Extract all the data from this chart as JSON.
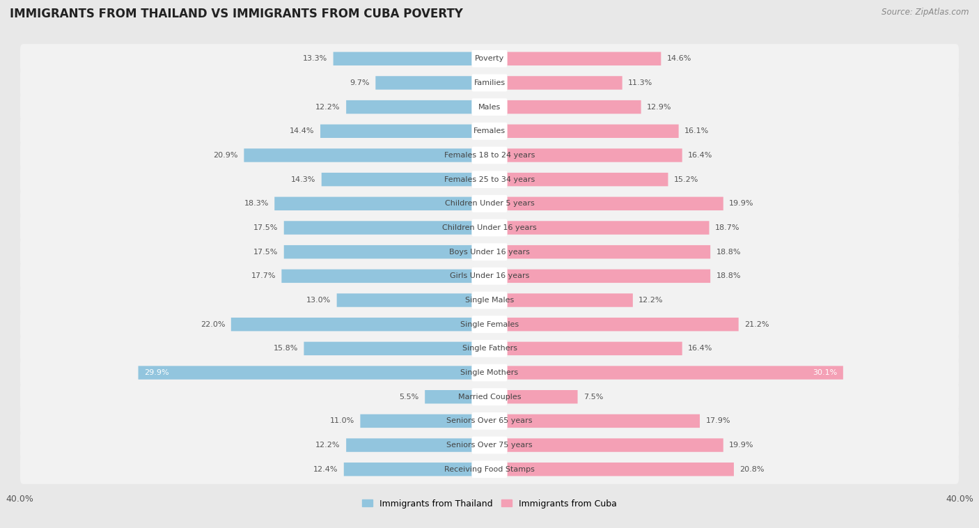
{
  "title": "IMMIGRANTS FROM THAILAND VS IMMIGRANTS FROM CUBA POVERTY",
  "source": "Source: ZipAtlas.com",
  "categories": [
    "Poverty",
    "Families",
    "Males",
    "Females",
    "Females 18 to 24 years",
    "Females 25 to 34 years",
    "Children Under 5 years",
    "Children Under 16 years",
    "Boys Under 16 years",
    "Girls Under 16 years",
    "Single Males",
    "Single Females",
    "Single Fathers",
    "Single Mothers",
    "Married Couples",
    "Seniors Over 65 years",
    "Seniors Over 75 years",
    "Receiving Food Stamps"
  ],
  "thailand_values": [
    13.3,
    9.7,
    12.2,
    14.4,
    20.9,
    14.3,
    18.3,
    17.5,
    17.5,
    17.7,
    13.0,
    22.0,
    15.8,
    29.9,
    5.5,
    11.0,
    12.2,
    12.4
  ],
  "cuba_values": [
    14.6,
    11.3,
    12.9,
    16.1,
    16.4,
    15.2,
    19.9,
    18.7,
    18.8,
    18.8,
    12.2,
    21.2,
    16.4,
    30.1,
    7.5,
    17.9,
    19.9,
    20.8
  ],
  "thailand_color": "#92c5de",
  "cuba_color": "#f4a0b5",
  "thailand_label": "Immigrants from Thailand",
  "cuba_label": "Immigrants from Cuba",
  "x_max": 40.0,
  "background_color": "#e8e8e8",
  "row_bg_color": "#f2f2f2",
  "bar_label_color_default": "#555555",
  "single_mothers_label_color_th": "#ffffff",
  "single_mothers_label_color_cu": "#ffffff",
  "title_fontsize": 12,
  "source_fontsize": 8.5,
  "label_fontsize": 8,
  "cat_fontsize": 8
}
